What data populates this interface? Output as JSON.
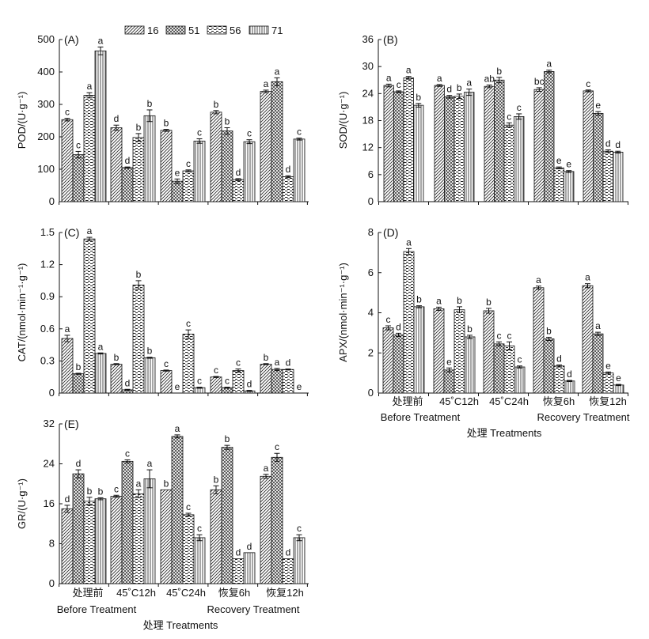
{
  "legend": [
    "16",
    "51",
    "56",
    "71"
  ],
  "x_categories": [
    "处理前",
    "45˚C12h",
    "45˚C24h",
    "恢复6h",
    "恢复12h"
  ],
  "group_labels": {
    "before": "Before Treatment",
    "recovery": "Recovery Treatment"
  },
  "x_title": "处理 Treatments",
  "chart_data": [
    {
      "type": "bar",
      "panel": "(A)",
      "ylabel": "POD/(U·g⁻¹)",
      "ylim": [
        0,
        500
      ],
      "yticks": [
        0,
        100,
        200,
        300,
        400,
        500
      ],
      "categories": [
        "处理前",
        "45˚C12h",
        "45˚C24h",
        "恢复6h",
        "恢复12h"
      ],
      "series": [
        {
          "name": "16",
          "values": [
            253,
            228,
            220,
            276,
            340
          ],
          "errors": [
            4,
            8,
            3,
            5,
            4
          ],
          "letters": [
            "c",
            "d",
            "b",
            "b",
            "a"
          ]
        },
        {
          "name": "51",
          "values": [
            145,
            105,
            63,
            218,
            370
          ],
          "errors": [
            10,
            2,
            7,
            10,
            12
          ],
          "letters": [
            "c",
            "d",
            "e",
            "b",
            "a"
          ]
        },
        {
          "name": "56",
          "values": [
            328,
            198,
            95,
            68,
            77
          ],
          "errors": [
            8,
            12,
            3,
            3,
            3
          ],
          "letters": [
            "a",
            "b",
            "c",
            "d",
            "d"
          ]
        },
        {
          "name": "71",
          "values": [
            465,
            265,
            187,
            185,
            193
          ],
          "errors": [
            12,
            18,
            7,
            6,
            3
          ],
          "letters": [
            "a",
            "b",
            "c",
            "c",
            "c"
          ]
        }
      ]
    },
    {
      "type": "bar",
      "panel": "(B)",
      "ylabel": "SOD/(U·g⁻¹)",
      "ylim": [
        0,
        36
      ],
      "yticks": [
        0,
        6,
        12,
        18,
        24,
        30,
        36
      ],
      "categories": [
        "处理前",
        "45˚C12h",
        "45˚C24h",
        "恢复6h",
        "恢复12h"
      ],
      "series": [
        {
          "name": "16",
          "values": [
            25.8,
            25.8,
            25.6,
            24.9,
            24.6
          ],
          "errors": [
            0.3,
            0.2,
            0.3,
            0.4,
            0.2
          ],
          "letters": [
            "a",
            "a",
            "ab",
            "bc",
            "c"
          ]
        },
        {
          "name": "51",
          "values": [
            24.4,
            23.3,
            27.0,
            28.9,
            19.6
          ],
          "errors": [
            0.2,
            0.3,
            0.6,
            0.3,
            0.4
          ],
          "letters": [
            "c",
            "d",
            "b",
            "a",
            "e"
          ]
        },
        {
          "name": "56",
          "values": [
            27.5,
            23.4,
            17.0,
            7.5,
            11.2
          ],
          "errors": [
            0.3,
            0.5,
            0.5,
            0.2,
            0.3
          ],
          "letters": [
            "a",
            "b",
            "c",
            "e",
            "d"
          ]
        },
        {
          "name": "71",
          "values": [
            21.4,
            24.3,
            18.9,
            6.7,
            11.0
          ],
          "errors": [
            0.4,
            0.7,
            0.6,
            0.2,
            0.2
          ],
          "letters": [
            "b",
            "a",
            "c",
            "e",
            "d"
          ]
        }
      ]
    },
    {
      "type": "bar",
      "panel": "(C)",
      "ylabel": "CAT/(nmol·min⁻¹·g⁻¹)",
      "ylim": [
        0,
        1.5
      ],
      "yticks": [
        0,
        0.3,
        0.6,
        0.9,
        1.2,
        1.5
      ],
      "categories": [
        "处理前",
        "45˚C12h",
        "45˚C24h",
        "恢复6h",
        "恢复12h"
      ],
      "series": [
        {
          "name": "16",
          "values": [
            0.51,
            0.27,
            0.21,
            0.15,
            0.27
          ],
          "errors": [
            0.03,
            0.005,
            0.005,
            0.005,
            0.005
          ],
          "letters": [
            "a",
            "b",
            "c",
            "c",
            "b"
          ]
        },
        {
          "name": "51",
          "values": [
            0.18,
            0.03,
            0.0,
            0.05,
            0.22
          ],
          "errors": [
            0.005,
            0.005,
            0.0,
            0.005,
            0.01
          ],
          "letters": [
            "b",
            "d",
            "e",
            "c",
            "a"
          ]
        },
        {
          "name": "56",
          "values": [
            1.44,
            1.01,
            0.55,
            0.21,
            0.22
          ],
          "errors": [
            0.015,
            0.04,
            0.04,
            0.015,
            0.005
          ],
          "letters": [
            "a",
            "b",
            "c",
            "c",
            "d"
          ]
        },
        {
          "name": "71",
          "values": [
            0.37,
            0.33,
            0.05,
            0.02,
            0.0
          ],
          "errors": [
            0.005,
            0.005,
            0.005,
            0.005,
            0.0
          ],
          "letters": [
            "a",
            "b",
            "c",
            "d",
            "e"
          ]
        }
      ]
    },
    {
      "type": "bar",
      "panel": "(D)",
      "ylabel": "APX/(nmol·min⁻¹·g⁻¹)",
      "ylim": [
        0,
        8
      ],
      "yticks": [
        0,
        2,
        4,
        6,
        8
      ],
      "categories": [
        "处理前",
        "45˚C12h",
        "45˚C24h",
        "恢复6h",
        "恢复12h"
      ],
      "series": [
        {
          "name": "16",
          "values": [
            3.25,
            4.2,
            4.1,
            5.25,
            5.35
          ],
          "errors": [
            0.1,
            0.08,
            0.12,
            0.08,
            0.1
          ],
          "letters": [
            "c",
            "a",
            "b",
            "a",
            "a"
          ]
        },
        {
          "name": "51",
          "values": [
            2.9,
            1.15,
            2.45,
            2.7,
            2.95
          ],
          "errors": [
            0.08,
            0.1,
            0.1,
            0.08,
            0.08
          ],
          "letters": [
            "d",
            "e",
            "c",
            "b",
            "a"
          ]
        },
        {
          "name": "56",
          "values": [
            7.05,
            4.15,
            2.35,
            1.35,
            1.0
          ],
          "errors": [
            0.15,
            0.15,
            0.2,
            0.05,
            0.05
          ],
          "letters": [
            "a",
            "b",
            "c",
            "d",
            "e"
          ]
        },
        {
          "name": "71",
          "values": [
            4.3,
            2.8,
            1.3,
            0.6,
            0.4
          ],
          "errors": [
            0.05,
            0.08,
            0.05,
            0.03,
            0.03
          ],
          "letters": [
            "b",
            "b",
            "c",
            "d",
            "e"
          ]
        }
      ]
    },
    {
      "type": "bar",
      "panel": "(E)",
      "ylabel": "GR/(U·g⁻¹)",
      "ylim": [
        0,
        32
      ],
      "yticks": [
        0,
        8,
        16,
        24,
        32
      ],
      "categories": [
        "处理前",
        "45˚C12h",
        "45˚C24h",
        "恢复6h",
        "恢复12h"
      ],
      "series": [
        {
          "name": "16",
          "values": [
            15.0,
            17.5,
            18.8,
            18.8,
            21.5
          ],
          "errors": [
            0.7,
            0.2,
            0.0,
            0.8,
            0.4
          ],
          "letters": [
            "d",
            "c",
            "b",
            "b",
            "a"
          ]
        },
        {
          "name": "51",
          "values": [
            22.0,
            24.5,
            29.5,
            27.3,
            25.3
          ],
          "errors": [
            0.8,
            0.3,
            0.3,
            0.4,
            0.8
          ],
          "letters": [
            "d",
            "c",
            "a",
            "b",
            "c"
          ]
        },
        {
          "name": "56",
          "values": [
            16.5,
            18.0,
            13.8,
            5.0,
            5.0
          ],
          "errors": [
            0.8,
            0.8,
            0.3,
            0.0,
            0.0
          ],
          "letters": [
            "b",
            "a",
            "c",
            "d",
            "d"
          ]
        },
        {
          "name": "71",
          "values": [
            17.0,
            21.0,
            9.2,
            6.2,
            9.2
          ],
          "errors": [
            0.2,
            1.8,
            0.6,
            0.0,
            0.6
          ],
          "letters": [
            "b",
            "a",
            "c",
            "d",
            "c"
          ]
        }
      ]
    }
  ]
}
